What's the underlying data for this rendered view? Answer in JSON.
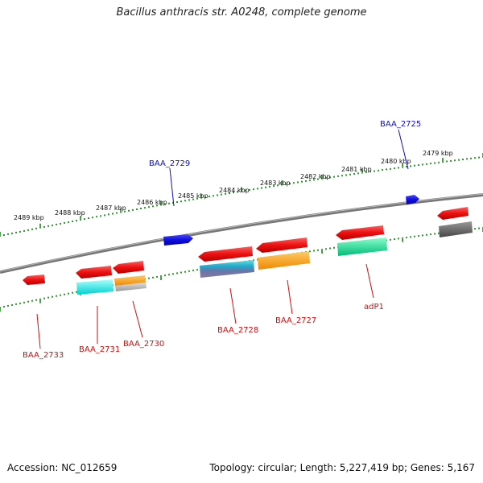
{
  "title": "Bacillus anthracis str. A0248, complete genome",
  "footer": {
    "accession": "Accession: NC_012659",
    "summary": "Topology: circular; Length: 5,227,419 bp; Genes: 5,167"
  },
  "colors": {
    "backbone": "#7a7a7a",
    "ticks": "#1a8a1a",
    "label_forward": "#1010c0",
    "label_reverse": "#cc1111",
    "forward_gene": "#1010e0",
    "reverse_gene": "#ee1111"
  },
  "scale_labels": [
    "2479 kbp",
    "2480 kbp",
    "2481 kbp",
    "2482 kbp",
    "2483 kbp",
    "2484 kbp",
    "2485 kbp",
    "2486 kbp",
    "2487 kbp",
    "2488 kbp",
    "2489 kbp"
  ],
  "gene_labels": {
    "forward": [
      "BAA_2725",
      "BAA_2729"
    ],
    "reverse": [
      "BAA_2733",
      "BAA_2731",
      "BAA_2730",
      "BAA_2728",
      "BAA_2727",
      "adP1"
    ]
  },
  "cog_colors": [
    "#00e5e5",
    "#ff9900",
    "#aaaaaa",
    "#00dd88",
    "#666666",
    "#5555aa"
  ]
}
